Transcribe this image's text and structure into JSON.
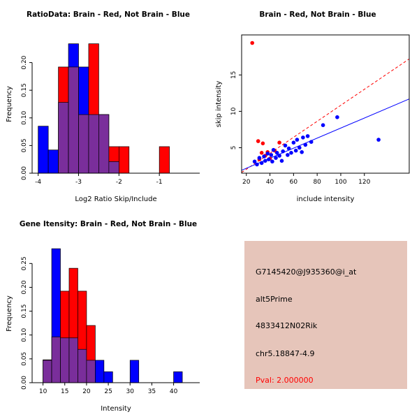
{
  "colors": {
    "red": "#FF0000",
    "blue": "#0000FF",
    "purple": "#7A2E9B",
    "black": "#000000",
    "background": "#FFFFFF"
  },
  "chart_data": [
    {
      "id": "ratio-hist",
      "type": "bar",
      "title": "RatioData: Brain - Red, Not Brain - Blue",
      "xlabel": "Log2 Ratio Skip/Include",
      "ylabel": "Frequency",
      "xlim": [
        -4.15,
        0.0
      ],
      "ylim": [
        0,
        0.25
      ],
      "xticks": [
        -4,
        -3,
        -2,
        -1
      ],
      "xtick_labels": [
        "-4",
        "-3",
        "-2",
        "-1"
      ],
      "yticks": [
        0,
        0.05,
        0.1,
        0.15,
        0.2
      ],
      "ytick_labels": [
        "0.00",
        "0.05",
        "0.10",
        "0.15",
        "0.20"
      ],
      "bin_width": 0.25,
      "bin_edges": [
        -4.0,
        -3.75,
        -3.5,
        -3.25,
        -3.0,
        -2.75,
        -2.5,
        -2.25,
        -2.0,
        -1.75,
        -1.5,
        -1.25,
        -1.0
      ],
      "series": [
        {
          "name": "Brain",
          "color": "red",
          "values": [
            0,
            0,
            0.192,
            0.192,
            0.106,
            0.234,
            0.106,
            0.048,
            0.048,
            0,
            0,
            0,
            0.048
          ]
        },
        {
          "name": "Not Brain",
          "color": "blue",
          "values": [
            0.085,
            0.042,
            0.128,
            0.234,
            0.192,
            0.106,
            0.106,
            0.021,
            0,
            0,
            0,
            0,
            0
          ]
        }
      ]
    },
    {
      "id": "intensity-scatter",
      "type": "scatter",
      "title": "Brain - Red, Not Brain - Blue",
      "xlabel": "include intensity",
      "ylabel": "skip intensity",
      "xlim": [
        16,
        158
      ],
      "ylim": [
        1.5,
        20.5
      ],
      "xticks": [
        20,
        40,
        60,
        80,
        100,
        120
      ],
      "xtick_labels": [
        "20",
        "40",
        "60",
        "80",
        "100",
        "120"
      ],
      "yticks": [
        5,
        10,
        15
      ],
      "ytick_labels": [
        "5",
        "10",
        "15"
      ],
      "box": true,
      "series": [
        {
          "name": "Brain",
          "color": "red",
          "points": [
            [
              25,
              19.4
            ],
            [
              30,
              5.9
            ],
            [
              31,
              3.4
            ],
            [
              33,
              4.3
            ],
            [
              34,
              5.6
            ],
            [
              36,
              3.9
            ],
            [
              38,
              4.4
            ],
            [
              40,
              3.5
            ],
            [
              44,
              4.6
            ],
            [
              48,
              5.7
            ]
          ]
        },
        {
          "name": "Not Brain",
          "color": "blue",
          "points": [
            [
              27,
              3.1
            ],
            [
              29,
              2.7
            ],
            [
              31,
              3.6
            ],
            [
              33,
              2.9
            ],
            [
              35,
              3.8
            ],
            [
              36,
              3.2
            ],
            [
              38,
              4.2
            ],
            [
              39,
              3.4
            ],
            [
              41,
              4.0
            ],
            [
              42,
              3.1
            ],
            [
              43,
              4.7
            ],
            [
              45,
              3.6
            ],
            [
              46,
              4.3
            ],
            [
              48,
              3.9
            ],
            [
              50,
              3.2
            ],
            [
              51,
              4.5
            ],
            [
              53,
              5.3
            ],
            [
              55,
              4.0
            ],
            [
              56,
              4.9
            ],
            [
              58,
              4.3
            ],
            [
              60,
              5.7
            ],
            [
              62,
              4.6
            ],
            [
              63,
              6.1
            ],
            [
              65,
              5.0
            ],
            [
              67,
              4.4
            ],
            [
              68,
              6.4
            ],
            [
              70,
              5.4
            ],
            [
              72,
              6.6
            ],
            [
              75,
              5.8
            ],
            [
              85,
              8.1
            ],
            [
              97,
              9.2
            ],
            [
              132,
              6.1
            ]
          ]
        }
      ],
      "lines": [
        {
          "name": "brain-fit-line",
          "color": "red",
          "dashed": true,
          "x1": 16,
          "y1": 1.6,
          "x2": 158,
          "y2": 17.2
        },
        {
          "name": "notbrain-fit-line",
          "color": "blue",
          "dashed": false,
          "x1": 16,
          "y1": 1.9,
          "x2": 158,
          "y2": 11.7
        }
      ]
    },
    {
      "id": "gene-hist",
      "type": "bar",
      "title": "Gene Itensity: Brain - Red, Not Brain - Blue",
      "xlabel": "Intensity",
      "ylabel": "Frequency",
      "xlim": [
        7.5,
        46
      ],
      "ylim": [
        0,
        0.29
      ],
      "xticks": [
        10,
        15,
        20,
        25,
        30,
        35,
        40
      ],
      "xtick_labels": [
        "10",
        "15",
        "20",
        "25",
        "30",
        "35",
        "40"
      ],
      "yticks": [
        0,
        0.05,
        0.1,
        0.15,
        0.2,
        0.25
      ],
      "ytick_labels": [
        "0.00",
        "0.05",
        "0.10",
        "0.15",
        "0.20",
        "0.25"
      ],
      "bin_width": 2,
      "bin_edges": [
        10,
        12,
        14,
        16,
        18,
        20,
        22,
        24,
        26,
        28,
        30,
        32,
        34,
        36,
        38,
        40
      ],
      "series": [
        {
          "name": "Brain",
          "color": "red",
          "values": [
            0.048,
            0.096,
            0.192,
            0.24,
            0.192,
            0.12,
            0,
            0,
            0,
            0,
            0,
            0,
            0,
            0,
            0,
            0
          ]
        },
        {
          "name": "Not Brain",
          "color": "blue",
          "values": [
            0.047,
            0.281,
            0.094,
            0.094,
            0.07,
            0.047,
            0.047,
            0.023,
            0,
            0,
            0.047,
            0,
            0,
            0,
            0,
            0.023
          ]
        }
      ]
    }
  ],
  "info_panel": {
    "bg": "#E6C5BA",
    "lines": [
      {
        "text": "G7145420@J935360@i_at",
        "color": "#000000"
      },
      {
        "text": "alt5Prime",
        "color": "#000000"
      },
      {
        "text": "4833412N02Rik",
        "color": "#000000"
      },
      {
        "text": "chr5.18847-4.9",
        "color": "#000000"
      },
      {
        "text": "Pval: 2.000000",
        "color": "#FF0000"
      }
    ]
  }
}
